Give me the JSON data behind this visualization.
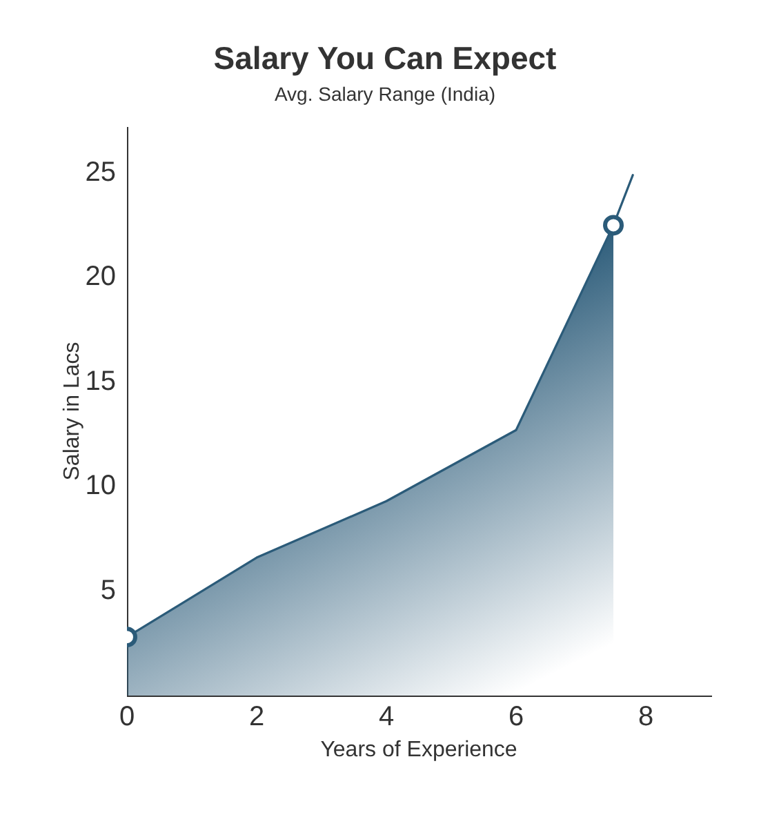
{
  "chart_data": {
    "type": "area",
    "title": "Salary You Can Expect",
    "subtitle": "Avg. Salary Range (India)",
    "xlabel": "Years of Experience",
    "ylabel": "Salary in Lacs",
    "series": [
      {
        "color": "#2b5b79",
        "x": [
          0,
          2,
          4,
          6,
          7.5
        ],
        "values": [
          2.8,
          6.6,
          9.3,
          12.7,
          22.5
        ]
      },
      {
        "type": "line",
        "color": "#2b5b79",
        "x": [
          7.5,
          7.8
        ],
        "values": [
          22.5,
          24.9
        ]
      },
      {
        "type": "scatter",
        "color": "#2b5b79",
        "x": [
          0,
          7.5
        ],
        "values": [
          2.8,
          22.5
        ],
        "marker": "circle"
      }
    ],
    "xlim": [
      0,
      9
    ],
    "ylim": [
      0,
      27.2
    ],
    "xticks": [
      0,
      2,
      4,
      6,
      8
    ],
    "yticks": [
      5,
      10,
      15,
      20,
      25
    ]
  }
}
